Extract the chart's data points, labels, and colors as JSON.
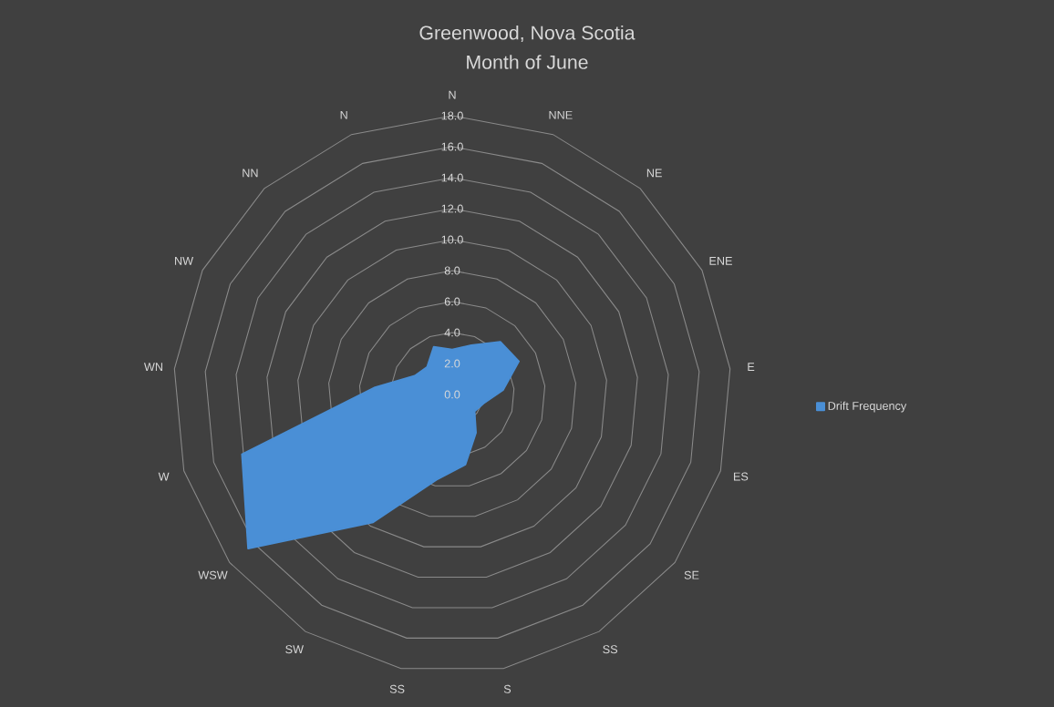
{
  "chart_data": {
    "type": "radar",
    "title": "Greenwood, Nova Scotia",
    "subtitle": "Month of June",
    "categories": [
      "N",
      "NNE",
      "NE",
      "ENE",
      "E",
      "ES",
      "SE",
      "SS",
      "S",
      "SS",
      "SW",
      "WSW",
      "W",
      "WN",
      "NW",
      "NN",
      "N"
    ],
    "series": [
      {
        "name": "Drift Frequency",
        "color": "#4a8fd6",
        "values": [
          2.9,
          3.4,
          4.6,
          4.8,
          3.3,
          2.1,
          1.8,
          2.9,
          4.6,
          5.6,
          9.7,
          16.5,
          14.1,
          5.0,
          2.7,
          2.4,
          3.3
        ]
      }
    ],
    "ylim": [
      0,
      18
    ],
    "yticks": [
      {
        "value": 0,
        "label": "0.0"
      },
      {
        "value": 2,
        "label": "2.0"
      },
      {
        "value": 4,
        "label": "4.0"
      },
      {
        "value": 6,
        "label": "6.0"
      },
      {
        "value": 8,
        "label": "8.0"
      },
      {
        "value": 10,
        "label": "10.0"
      },
      {
        "value": 12,
        "label": "12.0"
      },
      {
        "value": 14,
        "label": "14.0"
      },
      {
        "value": 16,
        "label": "16.0"
      },
      {
        "value": 18,
        "label": "18.0"
      }
    ],
    "grid": true,
    "legend": "right"
  }
}
